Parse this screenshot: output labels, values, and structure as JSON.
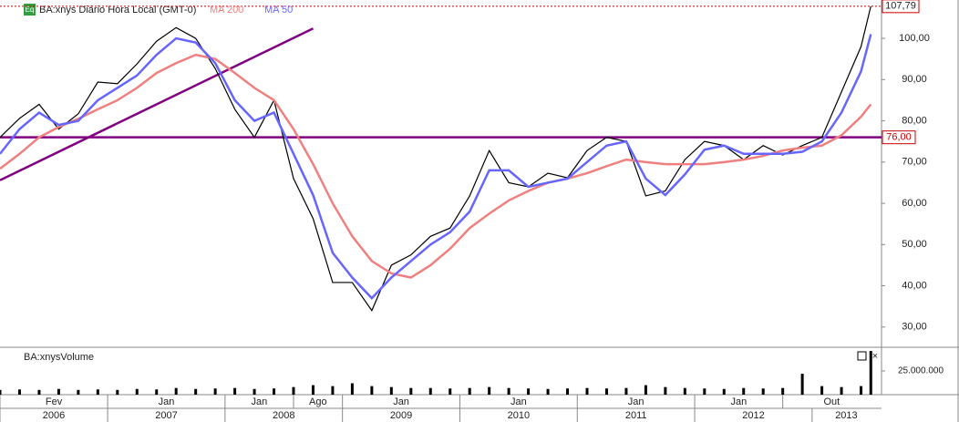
{
  "chart_data": [
    {
      "type": "line",
      "title": "BA:xnys Diário Hora Local (GMT-0)",
      "icon": "Eq",
      "x": [
        "2006-02",
        "2006-04",
        "2006-06",
        "2006-08",
        "2006-10",
        "2006-12",
        "2007-02",
        "2007-04",
        "2007-06",
        "2007-08",
        "2007-10",
        "2007-12",
        "2008-02",
        "2008-04",
        "2008-06",
        "2008-08",
        "2008-10",
        "2008-12",
        "2009-02",
        "2009-04",
        "2009-06",
        "2009-08",
        "2009-10",
        "2009-12",
        "2010-02",
        "2010-04",
        "2010-06",
        "2010-08",
        "2010-10",
        "2010-12",
        "2011-02",
        "2011-04",
        "2011-06",
        "2011-08",
        "2011-10",
        "2011-12",
        "2012-02",
        "2012-04",
        "2012-06",
        "2012-08",
        "2012-10",
        "2012-12",
        "2013-02",
        "2013-04",
        "2013-06",
        "2013-07"
      ],
      "xlim": [
        "2006-02",
        "2013-08"
      ],
      "series": [
        {
          "color": "#000000",
          "values": [
            76,
            80.6,
            84,
            78,
            81.7,
            89.4,
            89,
            93.8,
            99.3,
            102.6,
            100,
            92.7,
            82.8,
            76,
            85,
            66,
            56.3,
            40.8,
            40.8,
            34,
            45,
            47.5,
            52,
            54,
            61.8,
            72.8,
            65,
            64,
            67.3,
            66.2,
            72.8,
            76,
            75,
            61.8,
            63,
            70.6,
            75,
            74,
            70.6,
            74,
            71.7,
            74,
            76,
            87,
            98,
            107.79
          ]
        },
        {
          "name": "MA 200",
          "color": "#f08080",
          "values": [
            68.4,
            72,
            76,
            78.5,
            80.5,
            82.8,
            85,
            88,
            91.6,
            94,
            96,
            95,
            91.6,
            88,
            85,
            78,
            69.5,
            60,
            52,
            46,
            43,
            42,
            45,
            49,
            54,
            57.5,
            60.7,
            63,
            65,
            66,
            67.3,
            69,
            70.6,
            70,
            69.5,
            69.5,
            69.5,
            70,
            70.6,
            71.5,
            72.8,
            73.5,
            74,
            76.5,
            81,
            84
          ]
        },
        {
          "name": "MA 50",
          "color": "#6666ff",
          "values": [
            72,
            78,
            82,
            79,
            80,
            85,
            88,
            91,
            96,
            100,
            99,
            94,
            85,
            80,
            82,
            72,
            62,
            48,
            42,
            37,
            42,
            46,
            50,
            53,
            58,
            68,
            68,
            64,
            65,
            66,
            70,
            74,
            75,
            66,
            62,
            67,
            73,
            74,
            72,
            72,
            72,
            72.5,
            75,
            82,
            92,
            101
          ]
        }
      ],
      "ylim": [
        25.1,
        109.3
      ],
      "yticks": [
        {
          "value": 30,
          "label": "30,00"
        },
        {
          "value": 40,
          "label": "40,00"
        },
        {
          "value": 50,
          "label": "50,00"
        },
        {
          "value": 60,
          "label": "60,00"
        },
        {
          "value": 70,
          "label": "70,00"
        },
        {
          "value": 80,
          "label": "80,00"
        },
        {
          "value": 90,
          "label": "90,00"
        },
        {
          "value": 100,
          "label": "100,00"
        }
      ],
      "lines": [
        {
          "x": [
            "2006-02",
            "2008-10"
          ],
          "values": [
            65.6,
            102.4
          ],
          "color": "#800080"
        }
      ],
      "hlines": [
        {
          "value": 76,
          "label": "76,00",
          "color": "#800080"
        }
      ],
      "last": {
        "value": 107.79,
        "label": "107,79",
        "color": "#cc0000"
      },
      "xticks": [
        {
          "value": "2006-02",
          "label": "Fev"
        },
        {
          "value": "2007-01",
          "label": "Jan"
        },
        {
          "value": "2008-01",
          "label": "Jan"
        },
        {
          "value": "2008-08",
          "label": "Ago"
        },
        {
          "value": "2009-01",
          "label": "Jan"
        },
        {
          "value": "2010-01",
          "label": "Jan"
        },
        {
          "value": "2011-01",
          "label": "Jan"
        },
        {
          "value": "2012-01",
          "label": "Jan"
        },
        {
          "value": "2012-10",
          "label": "Out"
        }
      ],
      "year_ticks": [
        {
          "value": "2006-02",
          "label": "2006"
        },
        {
          "value": "2007-01",
          "label": "2007"
        },
        {
          "value": "2008-01",
          "label": "2008"
        },
        {
          "value": "2009-01",
          "label": "2009"
        },
        {
          "value": "2010-01",
          "label": "2010"
        },
        {
          "value": "2011-01",
          "label": "2011"
        },
        {
          "value": "2012-01",
          "label": "2012"
        },
        {
          "value": "2013-01",
          "label": "2013"
        }
      ]
    },
    {
      "type": "bar",
      "title": "BA:xnysVolume",
      "color": "#000000",
      "x": [
        "2006-02",
        "2006-04",
        "2006-06",
        "2006-08",
        "2006-10",
        "2006-12",
        "2007-02",
        "2007-04",
        "2007-06",
        "2007-08",
        "2007-10",
        "2007-12",
        "2008-02",
        "2008-04",
        "2008-06",
        "2008-08",
        "2008-10",
        "2008-12",
        "2009-02",
        "2009-04",
        "2009-06",
        "2009-08",
        "2009-10",
        "2009-12",
        "2010-02",
        "2010-04",
        "2010-06",
        "2010-08",
        "2010-10",
        "2010-12",
        "2011-02",
        "2011-04",
        "2011-06",
        "2011-08",
        "2011-10",
        "2011-12",
        "2012-02",
        "2012-04",
        "2012-06",
        "2012-08",
        "2012-10",
        "2012-12",
        "2013-02",
        "2013-04",
        "2013-06",
        "2013-07"
      ],
      "values": [
        5000000,
        5500000,
        5000000,
        6000000,
        5000000,
        5500000,
        5000000,
        6000000,
        5500000,
        7000000,
        6000000,
        6500000,
        7000000,
        6000000,
        6500000,
        8000000,
        10000000,
        9000000,
        12000000,
        9000000,
        8000000,
        7000000,
        7000000,
        6500000,
        7000000,
        8000000,
        7000000,
        6500000,
        6000000,
        6500000,
        7000000,
        6500000,
        7000000,
        10000000,
        8000000,
        7000000,
        6500000,
        6000000,
        7000000,
        6500000,
        7000000,
        22000000,
        9000000,
        8000000,
        9000000,
        46000000
      ],
      "ylim": [
        0,
        48000000
      ],
      "yticks": [
        {
          "value": 25000000,
          "label": "25.000.000"
        }
      ]
    }
  ]
}
